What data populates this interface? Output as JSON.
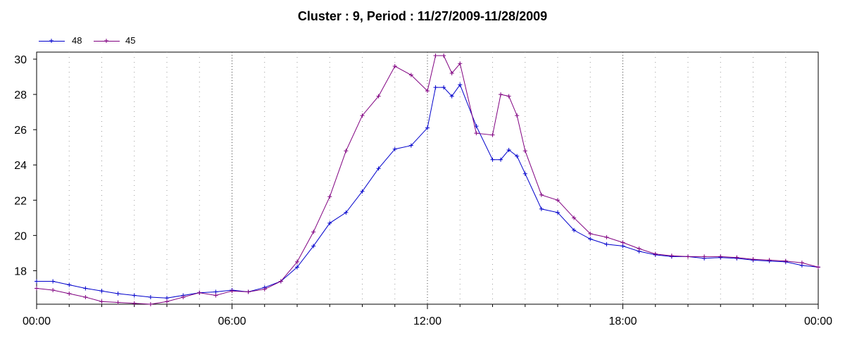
{
  "chart_data": {
    "type": "line",
    "title": "Cluster : 9, Period : 11/27/2009-11/28/2009",
    "xlabel": "",
    "ylabel": "",
    "x_tick_labels": [
      "00:00",
      "06:00",
      "12:00",
      "18:00",
      "00:00"
    ],
    "x_ticks_hours": [
      0,
      6,
      12,
      18,
      24
    ],
    "y_ticks": [
      18,
      20,
      22,
      24,
      26,
      28,
      30
    ],
    "xlim_hours": [
      0,
      24
    ],
    "ylim": [
      16.1,
      30.4
    ],
    "grid": "dotted vertical",
    "legend_position": "top-left",
    "x_hours": [
      0,
      0.5,
      1,
      1.5,
      2,
      2.5,
      3,
      3.5,
      4,
      4.5,
      5,
      5.5,
      6,
      6.5,
      7,
      7.5,
      8,
      8.5,
      9,
      9.5,
      10,
      10.5,
      11,
      11.5,
      12,
      12.25,
      12.5,
      12.75,
      13,
      13.5,
      14,
      14.25,
      14.5,
      14.75,
      15,
      15.5,
      16,
      16.5,
      17,
      17.5,
      18,
      18.5,
      19,
      19.5,
      20,
      20.5,
      21,
      21.5,
      22,
      22.5,
      23,
      23.5,
      24
    ],
    "series": [
      {
        "name": "48",
        "color": "#0000CC",
        "values": [
          17.4,
          17.4,
          17.2,
          17.0,
          16.85,
          16.7,
          16.6,
          16.5,
          16.45,
          16.6,
          16.75,
          16.8,
          16.9,
          16.8,
          17.05,
          17.4,
          18.2,
          19.4,
          20.7,
          21.3,
          22.5,
          23.8,
          24.9,
          25.1,
          26.1,
          28.4,
          28.4,
          27.9,
          28.55,
          26.2,
          24.3,
          24.3,
          24.85,
          24.5,
          23.5,
          21.5,
          21.3,
          20.3,
          19.8,
          19.5,
          19.4,
          19.1,
          18.9,
          18.8,
          18.8,
          18.7,
          18.75,
          18.7,
          18.6,
          18.55,
          18.5,
          18.3,
          18.2
        ]
      },
      {
        "name": "45",
        "color": "#800080",
        "values": [
          17.0,
          16.9,
          16.7,
          16.5,
          16.25,
          16.2,
          16.15,
          16.1,
          16.25,
          16.5,
          16.75,
          16.6,
          16.85,
          16.8,
          16.95,
          17.4,
          18.5,
          20.2,
          22.2,
          24.8,
          26.8,
          27.9,
          29.6,
          29.1,
          28.2,
          30.2,
          30.2,
          29.2,
          29.75,
          25.8,
          25.7,
          28.0,
          27.9,
          26.8,
          24.8,
          22.3,
          22.0,
          21.0,
          20.1,
          19.9,
          19.6,
          19.25,
          18.95,
          18.85,
          18.8,
          18.8,
          18.8,
          18.75,
          18.65,
          18.6,
          18.55,
          18.45,
          18.2
        ]
      }
    ]
  }
}
